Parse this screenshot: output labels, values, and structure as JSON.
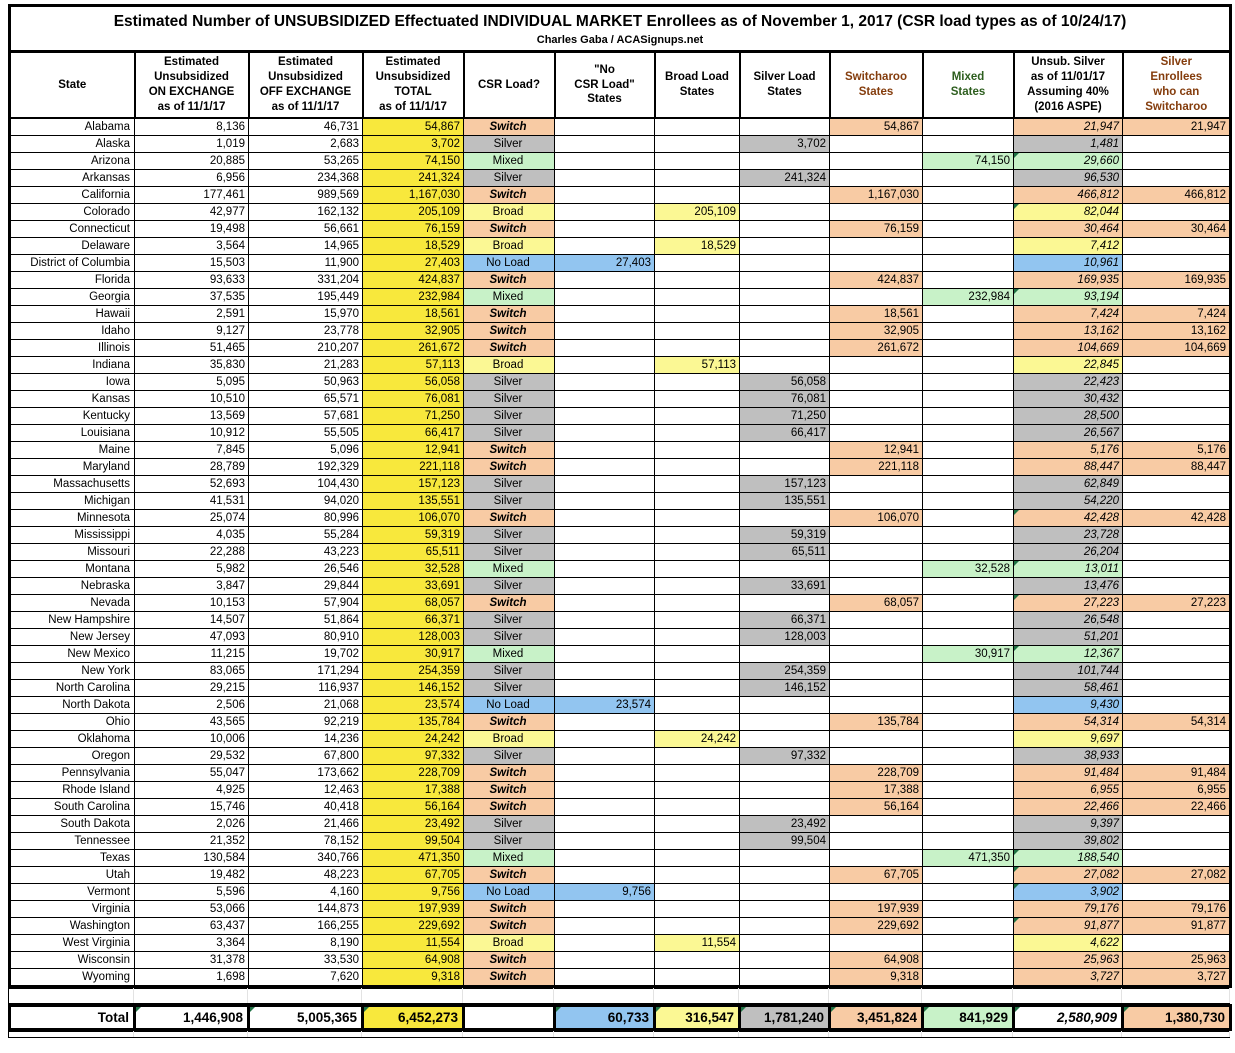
{
  "title": "Estimated Number of UNSUBSIDIZED Effectuated INDIVIDUAL MARKET Enrollees as of November 1, 2017 (CSR load types as of 10/24/17)",
  "subtitle": "Charles Gaba / ACASignups.net",
  "colors": {
    "total_yellow": "#F8E83C",
    "broad_light_yellow": "#FBF894",
    "no_load_blue": "#92C5F0",
    "silver_gray": "#BFBFBF",
    "switcharoo_orange": "#F8CBA4",
    "mixed_green": "#C8F2C8",
    "brown_header_text": "#843C0C",
    "green_header_text": "#2D5E1E",
    "flag_triangle_green": "#1F7244"
  },
  "chart_data": {
    "type": "table",
    "columns": {
      "state": "State",
      "on": "Estimated\nUnsubsidized\nON EXCHANGE\nas of 11/1/17",
      "off": "Estimated\nUnsubsidized\nOFF EXCHANGE\nas of 11/1/17",
      "total": "Estimated\nUnsubsidized\nTOTAL\nas of 11/1/17",
      "csr": "CSR Load?",
      "noload": "\"No\nCSR Load\"\nStates",
      "broad": "Broad Load\nStates",
      "silver": "Silver Load\nStates",
      "switcharoo": "Switcharoo\nStates",
      "mixed": "Mixed\nStates",
      "unsub": "Unsub. Silver\nas of 11/01/17\nAssuming 40%\n(2016 ASPE)",
      "silver_enr": "Silver\nEnrollees\nwho can\nSwitcharoo"
    },
    "rows": [
      {
        "state": "Alabama",
        "on": "8,136",
        "off": "46,731",
        "total": "54,867",
        "csr": "Switch",
        "type": "switch",
        "unsub": "21,947",
        "switch_silver": "21,947"
      },
      {
        "state": "Alaska",
        "on": "1,019",
        "off": "2,683",
        "total": "3,702",
        "csr": "Silver",
        "type": "silver",
        "unsub": "1,481"
      },
      {
        "state": "Arizona",
        "on": "20,885",
        "off": "53,265",
        "total": "74,150",
        "csr": "Mixed",
        "type": "mixed",
        "unsub": "29,660",
        "flag": true
      },
      {
        "state": "Arkansas",
        "on": "6,956",
        "off": "234,368",
        "total": "241,324",
        "csr": "Silver",
        "type": "silver",
        "unsub": "96,530"
      },
      {
        "state": "California",
        "on": "177,461",
        "off": "989,569",
        "total": "1,167,030",
        "csr": "Switch",
        "type": "switch",
        "unsub": "466,812",
        "switch_silver": "466,812"
      },
      {
        "state": "Colorado",
        "on": "42,977",
        "off": "162,132",
        "total": "205,109",
        "csr": "Broad",
        "type": "broad",
        "unsub": "82,044",
        "flag": true
      },
      {
        "state": "Connecticut",
        "on": "19,498",
        "off": "56,661",
        "total": "76,159",
        "csr": "Switch",
        "type": "switch",
        "unsub": "30,464",
        "switch_silver": "30,464"
      },
      {
        "state": "Delaware",
        "on": "3,564",
        "off": "14,965",
        "total": "18,529",
        "csr": "Broad",
        "type": "broad",
        "unsub": "7,412"
      },
      {
        "state": "District of Columbia",
        "on": "15,503",
        "off": "11,900",
        "total": "27,403",
        "csr": "No Load",
        "type": "noload",
        "unsub": "10,961"
      },
      {
        "state": "Florida",
        "on": "93,633",
        "off": "331,204",
        "total": "424,837",
        "csr": "Switch",
        "type": "switch",
        "unsub": "169,935",
        "switch_silver": "169,935"
      },
      {
        "state": "Georgia",
        "on": "37,535",
        "off": "195,449",
        "total": "232,984",
        "csr": "Mixed",
        "type": "mixed",
        "unsub": "93,194",
        "flag": true
      },
      {
        "state": "Hawaii",
        "on": "2,591",
        "off": "15,970",
        "total": "18,561",
        "csr": "Switch",
        "type": "switch",
        "unsub": "7,424",
        "switch_silver": "7,424"
      },
      {
        "state": "Idaho",
        "on": "9,127",
        "off": "23,778",
        "total": "32,905",
        "csr": "Switch",
        "type": "switch",
        "unsub": "13,162",
        "switch_silver": "13,162"
      },
      {
        "state": "Illinois",
        "on": "51,465",
        "off": "210,207",
        "total": "261,672",
        "csr": "Switch",
        "type": "switch",
        "unsub": "104,669",
        "switch_silver": "104,669"
      },
      {
        "state": "Indiana",
        "on": "35,830",
        "off": "21,283",
        "total": "57,113",
        "csr": "Broad",
        "type": "broad",
        "unsub": "22,845"
      },
      {
        "state": "Iowa",
        "on": "5,095",
        "off": "50,963",
        "total": "56,058",
        "csr": "Silver",
        "type": "silver",
        "unsub": "22,423"
      },
      {
        "state": "Kansas",
        "on": "10,510",
        "off": "65,571",
        "total": "76,081",
        "csr": "Silver",
        "type": "silver",
        "unsub": "30,432"
      },
      {
        "state": "Kentucky",
        "on": "13,569",
        "off": "57,681",
        "total": "71,250",
        "csr": "Silver",
        "type": "silver",
        "unsub": "28,500"
      },
      {
        "state": "Louisiana",
        "on": "10,912",
        "off": "55,505",
        "total": "66,417",
        "csr": "Silver",
        "type": "silver",
        "unsub": "26,567"
      },
      {
        "state": "Maine",
        "on": "7,845",
        "off": "5,096",
        "total": "12,941",
        "csr": "Switch",
        "type": "switch",
        "unsub": "5,176",
        "switch_silver": "5,176"
      },
      {
        "state": "Maryland",
        "on": "28,789",
        "off": "192,329",
        "total": "221,118",
        "csr": "Switch",
        "type": "switch",
        "unsub": "88,447",
        "switch_silver": "88,447"
      },
      {
        "state": "Massachusetts",
        "on": "52,693",
        "off": "104,430",
        "total": "157,123",
        "csr": "Silver",
        "type": "silver",
        "unsub": "62,849"
      },
      {
        "state": "Michigan",
        "on": "41,531",
        "off": "94,020",
        "total": "135,551",
        "csr": "Silver",
        "type": "silver",
        "unsub": "54,220"
      },
      {
        "state": "Minnesota",
        "on": "25,074",
        "off": "80,996",
        "total": "106,070",
        "csr": "Switch",
        "type": "switch",
        "unsub": "42,428",
        "switch_silver": "42,428",
        "flag": true
      },
      {
        "state": "Mississippi",
        "on": "4,035",
        "off": "55,284",
        "total": "59,319",
        "csr": "Silver",
        "type": "silver",
        "unsub": "23,728"
      },
      {
        "state": "Missouri",
        "on": "22,288",
        "off": "43,223",
        "total": "65,511",
        "csr": "Silver",
        "type": "silver",
        "unsub": "26,204"
      },
      {
        "state": "Montana",
        "on": "5,982",
        "off": "26,546",
        "total": "32,528",
        "csr": "Mixed",
        "type": "mixed",
        "unsub": "13,011",
        "flag": true
      },
      {
        "state": "Nebraska",
        "on": "3,847",
        "off": "29,844",
        "total": "33,691",
        "csr": "Silver",
        "type": "silver",
        "unsub": "13,476"
      },
      {
        "state": "Nevada",
        "on": "10,153",
        "off": "57,904",
        "total": "68,057",
        "csr": "Switch",
        "type": "switch",
        "unsub": "27,223",
        "switch_silver": "27,223",
        "flag": true
      },
      {
        "state": "New Hampshire",
        "on": "14,507",
        "off": "51,864",
        "total": "66,371",
        "csr": "Silver",
        "type": "silver",
        "unsub": "26,548"
      },
      {
        "state": "New Jersey",
        "on": "47,093",
        "off": "80,910",
        "total": "128,003",
        "csr": "Silver",
        "type": "silver",
        "unsub": "51,201"
      },
      {
        "state": "New Mexico",
        "on": "11,215",
        "off": "19,702",
        "total": "30,917",
        "csr": "Mixed",
        "type": "mixed",
        "unsub": "12,367",
        "flag": true
      },
      {
        "state": "New York",
        "on": "83,065",
        "off": "171,294",
        "total": "254,359",
        "csr": "Silver",
        "type": "silver",
        "unsub": "101,744"
      },
      {
        "state": "North Carolina",
        "on": "29,215",
        "off": "116,937",
        "total": "146,152",
        "csr": "Silver",
        "type": "silver",
        "unsub": "58,461"
      },
      {
        "state": "North Dakota",
        "on": "2,506",
        "off": "21,068",
        "total": "23,574",
        "csr": "No Load",
        "type": "noload",
        "unsub": "9,430"
      },
      {
        "state": "Ohio",
        "on": "43,565",
        "off": "92,219",
        "total": "135,784",
        "csr": "Switch",
        "type": "switch",
        "unsub": "54,314",
        "switch_silver": "54,314"
      },
      {
        "state": "Oklahoma",
        "on": "10,006",
        "off": "14,236",
        "total": "24,242",
        "csr": "Broad",
        "type": "broad",
        "unsub": "9,697"
      },
      {
        "state": "Oregon",
        "on": "29,532",
        "off": "67,800",
        "total": "97,332",
        "csr": "Silver",
        "type": "silver",
        "unsub": "38,933"
      },
      {
        "state": "Pennsylvania",
        "on": "55,047",
        "off": "173,662",
        "total": "228,709",
        "csr": "Switch",
        "type": "switch",
        "unsub": "91,484",
        "switch_silver": "91,484"
      },
      {
        "state": "Rhode Island",
        "on": "4,925",
        "off": "12,463",
        "total": "17,388",
        "csr": "Switch",
        "type": "switch",
        "unsub": "6,955",
        "switch_silver": "6,955"
      },
      {
        "state": "South Carolina",
        "on": "15,746",
        "off": "40,418",
        "total": "56,164",
        "csr": "Switch",
        "type": "switch",
        "unsub": "22,466",
        "switch_silver": "22,466"
      },
      {
        "state": "South Dakota",
        "on": "2,026",
        "off": "21,466",
        "total": "23,492",
        "csr": "Silver",
        "type": "silver",
        "unsub": "9,397"
      },
      {
        "state": "Tennessee",
        "on": "21,352",
        "off": "78,152",
        "total": "99,504",
        "csr": "Silver",
        "type": "silver",
        "unsub": "39,802"
      },
      {
        "state": "Texas",
        "on": "130,584",
        "off": "340,766",
        "total": "471,350",
        "csr": "Mixed",
        "type": "mixed",
        "unsub": "188,540",
        "flag": true
      },
      {
        "state": "Utah",
        "on": "19,482",
        "off": "48,223",
        "total": "67,705",
        "csr": "Switch",
        "type": "switch",
        "unsub": "27,082",
        "switch_silver": "27,082",
        "flag": true
      },
      {
        "state": "Vermont",
        "on": "5,596",
        "off": "4,160",
        "total": "9,756",
        "csr": "No Load",
        "type": "noload",
        "unsub": "3,902",
        "flag": true
      },
      {
        "state": "Virginia",
        "on": "53,066",
        "off": "144,873",
        "total": "197,939",
        "csr": "Switch",
        "type": "switch",
        "unsub": "79,176",
        "switch_silver": "79,176"
      },
      {
        "state": "Washington",
        "on": "63,437",
        "off": "166,255",
        "total": "229,692",
        "csr": "Switch",
        "type": "switch",
        "unsub": "91,877",
        "switch_silver": "91,877",
        "flag": true
      },
      {
        "state": "West Virginia",
        "on": "3,364",
        "off": "8,190",
        "total": "11,554",
        "csr": "Broad",
        "type": "broad",
        "unsub": "4,622"
      },
      {
        "state": "Wisconsin",
        "on": "31,378",
        "off": "33,530",
        "total": "64,908",
        "csr": "Switch",
        "type": "switch",
        "unsub": "25,963",
        "switch_silver": "25,963"
      },
      {
        "state": "Wyoming",
        "on": "1,698",
        "off": "7,620",
        "total": "9,318",
        "csr": "Switch",
        "type": "switch",
        "unsub": "3,727",
        "switch_silver": "3,727"
      }
    ],
    "totals": {
      "label": "Total",
      "on": "1,446,908",
      "off": "5,005,365",
      "total": "6,452,273",
      "noload": "60,733",
      "broad": "316,547",
      "silver": "1,781,240",
      "switcharoo": "3,451,824",
      "mixed": "841,929",
      "unsub": "2,580,909",
      "switch_silver": "1,380,730"
    }
  }
}
